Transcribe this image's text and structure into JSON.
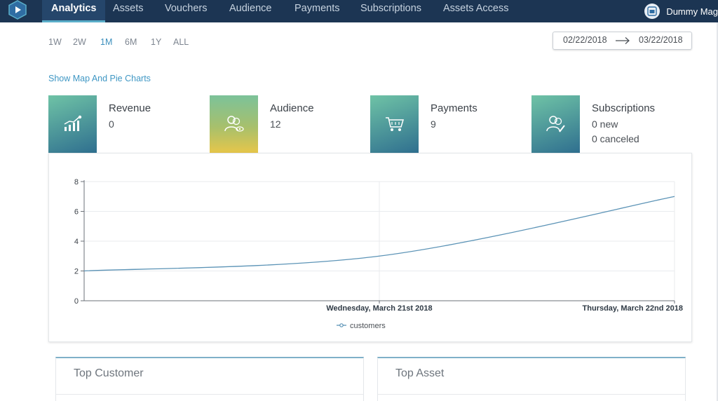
{
  "nav": {
    "items": [
      "Analytics",
      "Assets",
      "Vouchers",
      "Audience",
      "Payments",
      "Subscriptions",
      "Assets Access"
    ],
    "active": "Analytics",
    "user_name": "Dummy Mag"
  },
  "filters": {
    "ranges": [
      "1W",
      "2W",
      "1M",
      "6M",
      "1Y",
      "ALL"
    ],
    "active_range": "1M",
    "date_from": "02/22/2018",
    "date_to": "03/22/2018"
  },
  "show_map_link": "Show Map And Pie Charts",
  "stats": [
    {
      "title": "Revenue",
      "value": "0",
      "icon": "revenue-chart-icon"
    },
    {
      "title": "Audience",
      "value": "12",
      "icon": "audience-icon"
    },
    {
      "title": "Payments",
      "value": "9",
      "icon": "cart-icon"
    },
    {
      "title": "Subscriptions",
      "value": "0 new",
      "value2": "0 canceled",
      "icon": "subscriptions-icon"
    }
  ],
  "colors": {
    "nav_bg": "#1c3553",
    "accent": "#3f97c4",
    "line": "#5b93b6"
  },
  "chart_data": {
    "type": "line",
    "x": [
      "",
      "Wednesday, March 21st 2018",
      "Thursday, March 22nd 2018"
    ],
    "series": [
      {
        "name": "customers",
        "values": [
          2,
          3,
          7
        ]
      }
    ],
    "ylim": [
      0,
      8
    ],
    "yticks": [
      0,
      2,
      4,
      6,
      8
    ],
    "grid": true,
    "legend": "bottom-center"
  },
  "bottom": {
    "top_customer_title": "Top Customer",
    "top_asset_title": "Top Asset"
  }
}
